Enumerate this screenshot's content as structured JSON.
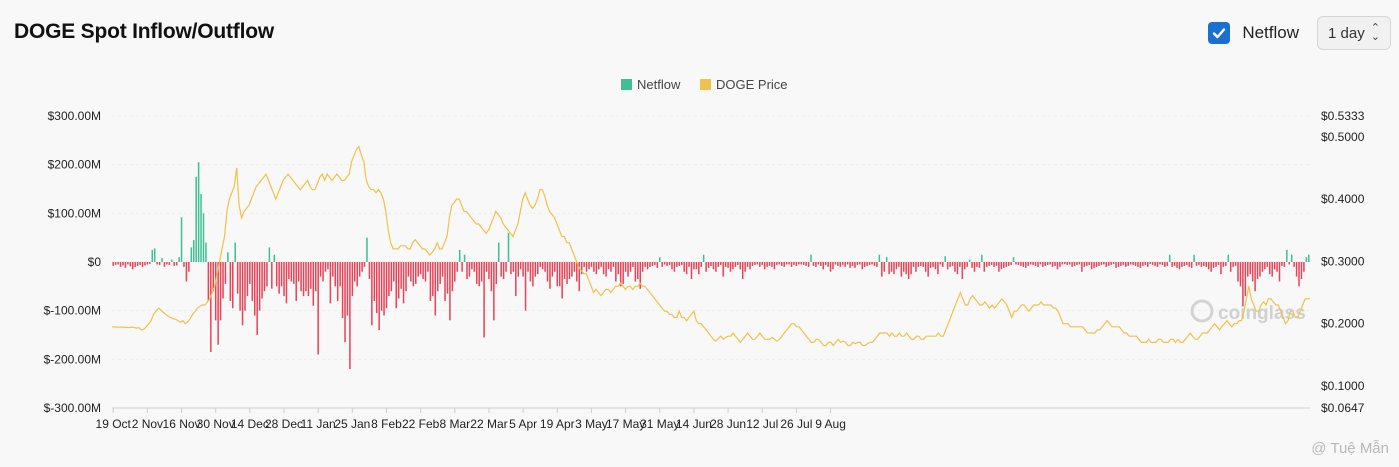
{
  "header": {
    "title": "DOGE Spot Inflow/Outflow",
    "checkbox_label": "Netflow",
    "checkbox_checked": true,
    "interval": "1 day"
  },
  "watermarks": {
    "brand": "coinglass",
    "credit": "@ Tuệ Mẫn"
  },
  "colors": {
    "netflow_pos": "#3fbf94",
    "netflow_neg": "#e84357",
    "price": "#f0c14b"
  },
  "chart_data": {
    "type": "bar",
    "legend": [
      "Netflow",
      "DOGE Price"
    ],
    "legend_position": "top-center",
    "x_tick_labels": [
      "19 Oct",
      "2 Nov",
      "16 Nov",
      "30 Nov",
      "14 Dec",
      "28 Dec",
      "11 Jan",
      "25 Jan",
      "8 Feb",
      "22 Feb",
      "8 Mar",
      "22 Mar",
      "5 Apr",
      "19 Apr",
      "3 May",
      "17 May",
      "31 May",
      "14 Jun",
      "28 Jun",
      "12 Jul",
      "26 Jul",
      "9 Aug"
    ],
    "y_left": {
      "ticks": [
        300,
        200,
        100,
        0,
        -100,
        -200,
        -300
      ],
      "tick_labels": [
        "$300.00M",
        "$200.00M",
        "$100.00M",
        "$0",
        "$-100.00M",
        "$-200.00M",
        "$-300.00M"
      ],
      "range": [
        -300,
        300
      ],
      "unit": "M USD"
    },
    "y_right": {
      "ticks": [
        0.5333,
        0.5,
        0.4,
        0.3,
        0.2,
        0.1,
        0.0647
      ],
      "tick_labels": [
        "$0.5333",
        "$0.5000",
        "$0.4000",
        "$0.3000",
        "$0.2000",
        "$0.1000",
        "$0.0647"
      ],
      "range": [
        0.0647,
        0.5333
      ]
    },
    "grid": true,
    "series": [
      {
        "name": "Netflow",
        "kind": "bar",
        "start": "19 Oct",
        "interval_days": 1,
        "values": [
          -8,
          -6,
          -5,
          -10,
          -7,
          -12,
          -5,
          -9,
          -15,
          -10,
          -8,
          -6,
          -10,
          -7,
          -5,
          -4,
          25,
          28,
          -5,
          -6,
          8,
          -10,
          -5,
          -6,
          5,
          -8,
          -7,
          10,
          92,
          -10,
          -40,
          -20,
          30,
          45,
          175,
          205,
          140,
          100,
          40,
          -80,
          -185,
          -60,
          -120,
          -170,
          -120,
          -75,
          -45,
          20,
          -80,
          -95,
          40,
          -65,
          -100,
          -130,
          -100,
          -70,
          -45,
          -80,
          -110,
          -150,
          -100,
          -75,
          -60,
          -50,
          30,
          -55,
          15,
          -50,
          -65,
          -50,
          -70,
          -85,
          -35,
          -40,
          -45,
          -80,
          -40,
          -60,
          -70,
          -60,
          -70,
          -55,
          -90,
          -60,
          -190,
          -30,
          -40,
          -20,
          -15,
          -85,
          -30,
          -50,
          -80,
          -50,
          -115,
          -165,
          -110,
          -220,
          -70,
          -40,
          -50,
          -30,
          -20,
          -10,
          50,
          -35,
          -130,
          -80,
          -105,
          -140,
          -100,
          -110,
          -95,
          -70,
          -60,
          -40,
          -95,
          -75,
          -55,
          -85,
          -60,
          -30,
          -40,
          -50,
          -45,
          -30,
          -25,
          -35,
          -40,
          -20,
          -80,
          -70,
          -110,
          -60,
          -45,
          -30,
          -80,
          -65,
          -120,
          -60,
          -40,
          -20,
          25,
          -20,
          15,
          -35,
          -30,
          -15,
          -20,
          -45,
          -50,
          -40,
          -155,
          -20,
          -35,
          -60,
          -120,
          -45,
          40,
          -30,
          -35,
          -20,
          60,
          -25,
          -20,
          -70,
          -30,
          -15,
          -30,
          -100,
          -20,
          -40,
          -50,
          -30,
          -25,
          -10,
          -15,
          -20,
          -40,
          -55,
          -30,
          -20,
          -50,
          -50,
          -75,
          -35,
          -45,
          -35,
          -30,
          -20,
          -40,
          -60,
          -25,
          -10,
          -20,
          -15,
          -10,
          -20,
          -25,
          -15,
          -10,
          -25,
          -30,
          -15,
          -20,
          -10,
          -40,
          -25,
          -50,
          -45,
          -20,
          -30,
          -20,
          -10,
          -40,
          -35,
          -55,
          -20,
          -10,
          -15,
          -10,
          -8,
          -6,
          -12,
          10,
          -10,
          -5,
          -8,
          -6,
          -15,
          -20,
          -10,
          -8,
          -6,
          -20,
          -25,
          -10,
          -35,
          -15,
          -15,
          -25,
          -10,
          15,
          -20,
          -12,
          -8,
          -15,
          -20,
          -10,
          -6,
          -30,
          -10,
          -12,
          -20,
          -15,
          -10,
          -6,
          -15,
          -35,
          -20,
          -10,
          -15,
          -8,
          -6,
          -5,
          -10,
          -6,
          -15,
          -10,
          -8,
          -10,
          -15,
          -6,
          -5,
          -8,
          -10,
          -5,
          -5,
          -10,
          -6,
          -8,
          -5,
          -5,
          -6,
          -8,
          -10,
          15,
          -8,
          -10,
          -5,
          -8,
          -15,
          -6,
          -10,
          -20,
          -15,
          -5,
          -8,
          -10,
          -6,
          -10,
          -5,
          -12,
          -8,
          -12,
          -6,
          -5,
          -15,
          -10,
          -8,
          -6,
          -5,
          -8,
          -10,
          15,
          -30,
          -20,
          10,
          -25,
          -20,
          -25,
          -15,
          -10,
          -30,
          -20,
          -25,
          -35,
          -25,
          -10,
          -20,
          -10,
          -8,
          -10,
          -20,
          -30,
          -12,
          -10,
          -15,
          -25,
          -5,
          -10,
          12,
          -15,
          -10,
          -8,
          -20,
          -25,
          -10,
          -35,
          -15,
          -10,
          5,
          -12,
          -20,
          -10,
          -12,
          15,
          -20,
          -10,
          -8,
          -6,
          -10,
          -8,
          -20,
          -15,
          -12,
          -10,
          -8,
          -6,
          10,
          -5,
          -6,
          -8,
          -10,
          -12,
          -8,
          -5,
          -6,
          -8,
          -10,
          -5,
          -10,
          -8,
          -6,
          -5,
          -10,
          -8,
          -15,
          -10,
          -5,
          -4,
          -6,
          -5,
          -10,
          -8,
          -6,
          -5,
          -20,
          -10,
          -8,
          -6,
          -15,
          -12,
          -10,
          -8,
          -6,
          -5,
          -10,
          -8,
          -6,
          -4,
          -12,
          -10,
          -8,
          -6,
          -10,
          -8,
          -5,
          -6,
          -8,
          -10,
          -12,
          -8,
          -6,
          -10,
          -4,
          -6,
          -8,
          -10,
          -5,
          -6,
          -10,
          -8,
          15,
          -10,
          -8,
          -12,
          -15,
          -10,
          -8,
          -6,
          -10,
          -12,
          15,
          -8,
          -6,
          -10,
          -8,
          -10,
          -15,
          -20,
          -12,
          -10,
          -6,
          -25,
          -10,
          -8,
          15,
          -20,
          -10,
          -8,
          -40,
          -50,
          -90,
          -70,
          -30,
          -25,
          -40,
          -60,
          -35,
          -30,
          -20,
          -15,
          -10,
          -25,
          -30,
          -15,
          -20,
          -40,
          -8,
          -10,
          25,
          -5,
          15,
          -10,
          -30,
          -50,
          -35,
          -20,
          10,
          15
        ]
      },
      {
        "name": "DOGE Price",
        "kind": "line",
        "start": "19 Oct",
        "interval_days": 1,
        "values": [
          0.195,
          0.1948,
          0.1945,
          0.1944,
          0.1945,
          0.1942,
          0.194,
          0.1938,
          0.1945,
          0.194,
          0.193,
          0.1935,
          0.19,
          0.191,
          0.195,
          0.2,
          0.205,
          0.215,
          0.22,
          0.225,
          0.222,
          0.218,
          0.215,
          0.212,
          0.21,
          0.208,
          0.207,
          0.205,
          0.202,
          0.205,
          0.2,
          0.203,
          0.208,
          0.215,
          0.22,
          0.225,
          0.228,
          0.23,
          0.23,
          0.235,
          0.24,
          0.25,
          0.26,
          0.28,
          0.3,
          0.32,
          0.34,
          0.38,
          0.4,
          0.41,
          0.42,
          0.45,
          0.39,
          0.37,
          0.38,
          0.385,
          0.39,
          0.4,
          0.41,
          0.42,
          0.425,
          0.43,
          0.435,
          0.44,
          0.43,
          0.42,
          0.41,
          0.4,
          0.41,
          0.42,
          0.43,
          0.435,
          0.44,
          0.435,
          0.43,
          0.425,
          0.42,
          0.415,
          0.42,
          0.425,
          0.43,
          0.42,
          0.415,
          0.415,
          0.425,
          0.435,
          0.44,
          0.43,
          0.44,
          0.435,
          0.43,
          0.435,
          0.44,
          0.435,
          0.43,
          0.43,
          0.435,
          0.44,
          0.46,
          0.47,
          0.48,
          0.484,
          0.47,
          0.46,
          0.43,
          0.42,
          0.415,
          0.415,
          0.41,
          0.415,
          0.41,
          0.4,
          0.38,
          0.35,
          0.33,
          0.32,
          0.32,
          0.32,
          0.325,
          0.325,
          0.325,
          0.32,
          0.32,
          0.33,
          0.335,
          0.33,
          0.325,
          0.32,
          0.32,
          0.315,
          0.31,
          0.315,
          0.32,
          0.33,
          0.32,
          0.32,
          0.33,
          0.34,
          0.37,
          0.39,
          0.395,
          0.4,
          0.4,
          0.39,
          0.38,
          0.38,
          0.375,
          0.37,
          0.365,
          0.36,
          0.36,
          0.355,
          0.35,
          0.345,
          0.35,
          0.36,
          0.37,
          0.38,
          0.375,
          0.37,
          0.36,
          0.355,
          0.35,
          0.345,
          0.34,
          0.35,
          0.36,
          0.38,
          0.4,
          0.41,
          0.4,
          0.39,
          0.385,
          0.39,
          0.4,
          0.415,
          0.415,
          0.405,
          0.39,
          0.38,
          0.375,
          0.37,
          0.36,
          0.35,
          0.34,
          0.34,
          0.33,
          0.33,
          0.32,
          0.31,
          0.3,
          0.29,
          0.285,
          0.28,
          0.28,
          0.27,
          0.26,
          0.25,
          0.255,
          0.25,
          0.245,
          0.25,
          0.255,
          0.255,
          0.25,
          0.255,
          0.26,
          0.26,
          0.265,
          0.26,
          0.255,
          0.26,
          0.26,
          0.255,
          0.26,
          0.26,
          0.265,
          0.26,
          0.26,
          0.255,
          0.25,
          0.245,
          0.24,
          0.235,
          0.23,
          0.225,
          0.22,
          0.22,
          0.215,
          0.215,
          0.21,
          0.21,
          0.22,
          0.21,
          0.21,
          0.205,
          0.21,
          0.215,
          0.22,
          0.205,
          0.2,
          0.2,
          0.195,
          0.19,
          0.185,
          0.18,
          0.175,
          0.172,
          0.176,
          0.18,
          0.175,
          0.178,
          0.18,
          0.18,
          0.185,
          0.18,
          0.175,
          0.17,
          0.175,
          0.18,
          0.185,
          0.18,
          0.175,
          0.175,
          0.18,
          0.185,
          0.18,
          0.175,
          0.175,
          0.175,
          0.178,
          0.175,
          0.172,
          0.175,
          0.18,
          0.185,
          0.19,
          0.195,
          0.2,
          0.2,
          0.195,
          0.195,
          0.19,
          0.185,
          0.18,
          0.175,
          0.17,
          0.17,
          0.175,
          0.175,
          0.17,
          0.165,
          0.165,
          0.17,
          0.17,
          0.165,
          0.17,
          0.175,
          0.17,
          0.172,
          0.17,
          0.165,
          0.165,
          0.17,
          0.168,
          0.17,
          0.17,
          0.165,
          0.165,
          0.168,
          0.17,
          0.17,
          0.175,
          0.18,
          0.185,
          0.185,
          0.185,
          0.185,
          0.18,
          0.185,
          0.18,
          0.18,
          0.185,
          0.18,
          0.18,
          0.185,
          0.18,
          0.175,
          0.175,
          0.18,
          0.18,
          0.175,
          0.175,
          0.18,
          0.18,
          0.18,
          0.18,
          0.18,
          0.185,
          0.18,
          0.18,
          0.19,
          0.2,
          0.21,
          0.22,
          0.23,
          0.24,
          0.25,
          0.24,
          0.23,
          0.23,
          0.24,
          0.245,
          0.24,
          0.235,
          0.23,
          0.23,
          0.235,
          0.23,
          0.225,
          0.23,
          0.225,
          0.23,
          0.235,
          0.24,
          0.235,
          0.23,
          0.22,
          0.21,
          0.22,
          0.22,
          0.225,
          0.23,
          0.23,
          0.225,
          0.22,
          0.225,
          0.23,
          0.23,
          0.23,
          0.235,
          0.23,
          0.23,
          0.23,
          0.23,
          0.225,
          0.225,
          0.22,
          0.21,
          0.2,
          0.2,
          0.2,
          0.195,
          0.195,
          0.195,
          0.195,
          0.195,
          0.195,
          0.19,
          0.185,
          0.185,
          0.185,
          0.185,
          0.19,
          0.19,
          0.195,
          0.2,
          0.205,
          0.2,
          0.195,
          0.195,
          0.195,
          0.195,
          0.19,
          0.185,
          0.185,
          0.18,
          0.18,
          0.18,
          0.18,
          0.175,
          0.17,
          0.17,
          0.17,
          0.175,
          0.17,
          0.17,
          0.17,
          0.175,
          0.175,
          0.17,
          0.17,
          0.17,
          0.175,
          0.175,
          0.17,
          0.175,
          0.17,
          0.17,
          0.175,
          0.18,
          0.185,
          0.18,
          0.175,
          0.175,
          0.18,
          0.185,
          0.185,
          0.185,
          0.19,
          0.195,
          0.2,
          0.195,
          0.19,
          0.195,
          0.2,
          0.205,
          0.2,
          0.195,
          0.2,
          0.2,
          0.205,
          0.205,
          0.22,
          0.24,
          0.26,
          0.24,
          0.23,
          0.22,
          0.22,
          0.23,
          0.235,
          0.23,
          0.24,
          0.24,
          0.235,
          0.23,
          0.23,
          0.22,
          0.21,
          0.2,
          0.205,
          0.22,
          0.22,
          0.21,
          0.21,
          0.22,
          0.23,
          0.24,
          0.24,
          0.24
        ]
      }
    ]
  }
}
